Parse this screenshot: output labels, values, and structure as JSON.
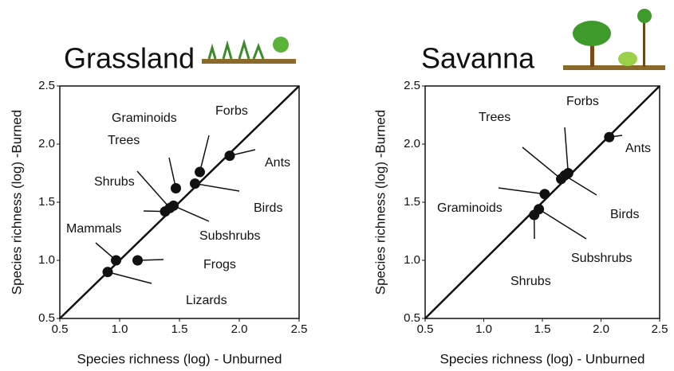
{
  "chart_data": [
    {
      "type": "scatter",
      "title": "Grassland",
      "xlabel": "Species richness (log) - Unburned",
      "ylabel": "Species richness (log) -Burned",
      "labels": [
        "Lizards",
        "Mammals",
        "Frogs",
        "Shrubs",
        "Trees",
        "Subshrubs",
        "Graminoids",
        "Birds",
        "Forbs",
        "Ants"
      ],
      "x": [
        0.9,
        0.97,
        1.15,
        1.38,
        1.42,
        1.45,
        1.47,
        1.63,
        1.67,
        1.92
      ],
      "y": [
        0.9,
        1.0,
        1.0,
        1.42,
        1.45,
        1.47,
        1.62,
        1.66,
        1.76,
        1.9
      ],
      "color": "#111111",
      "xlim": [
        0.5,
        2.5
      ],
      "ylim": [
        0.5,
        2.5
      ],
      "xticks": [
        0.5,
        {
          "value": 1,
          "label": "1.0"
        },
        1.5,
        {
          "value": 2,
          "label": "2.0"
        },
        2.5
      ],
      "yticks": [
        0.5,
        {
          "value": 1,
          "label": "1.0"
        },
        1.5,
        {
          "value": 2,
          "label": "2.0"
        },
        2.5
      ]
    },
    {
      "type": "scatter",
      "title": "Savanna",
      "xlabel": "Species richness (log) - Unburned",
      "ylabel": "Species richness (log) -Burned",
      "labels": [
        "Shrubs",
        "Subshrubs",
        "Graminoids",
        "Trees",
        "Birds",
        "Forbs",
        "Ants"
      ],
      "x": [
        1.43,
        1.47,
        1.52,
        1.66,
        1.69,
        1.72,
        2.07
      ],
      "y": [
        1.39,
        1.44,
        1.57,
        1.7,
        1.73,
        1.75,
        2.06
      ],
      "color": "#111111",
      "xlim": [
        0.5,
        2.5
      ],
      "ylim": [
        0.5,
        2.5
      ],
      "xticks": [
        0.5,
        {
          "value": 1,
          "label": "1.0"
        },
        1.5,
        {
          "value": 2,
          "label": "2.0"
        },
        2.5
      ],
      "yticks": [
        0.5,
        {
          "value": 1,
          "label": "1.0"
        },
        1.5,
        {
          "value": 2,
          "label": "2.0"
        },
        2.5
      ]
    }
  ]
}
